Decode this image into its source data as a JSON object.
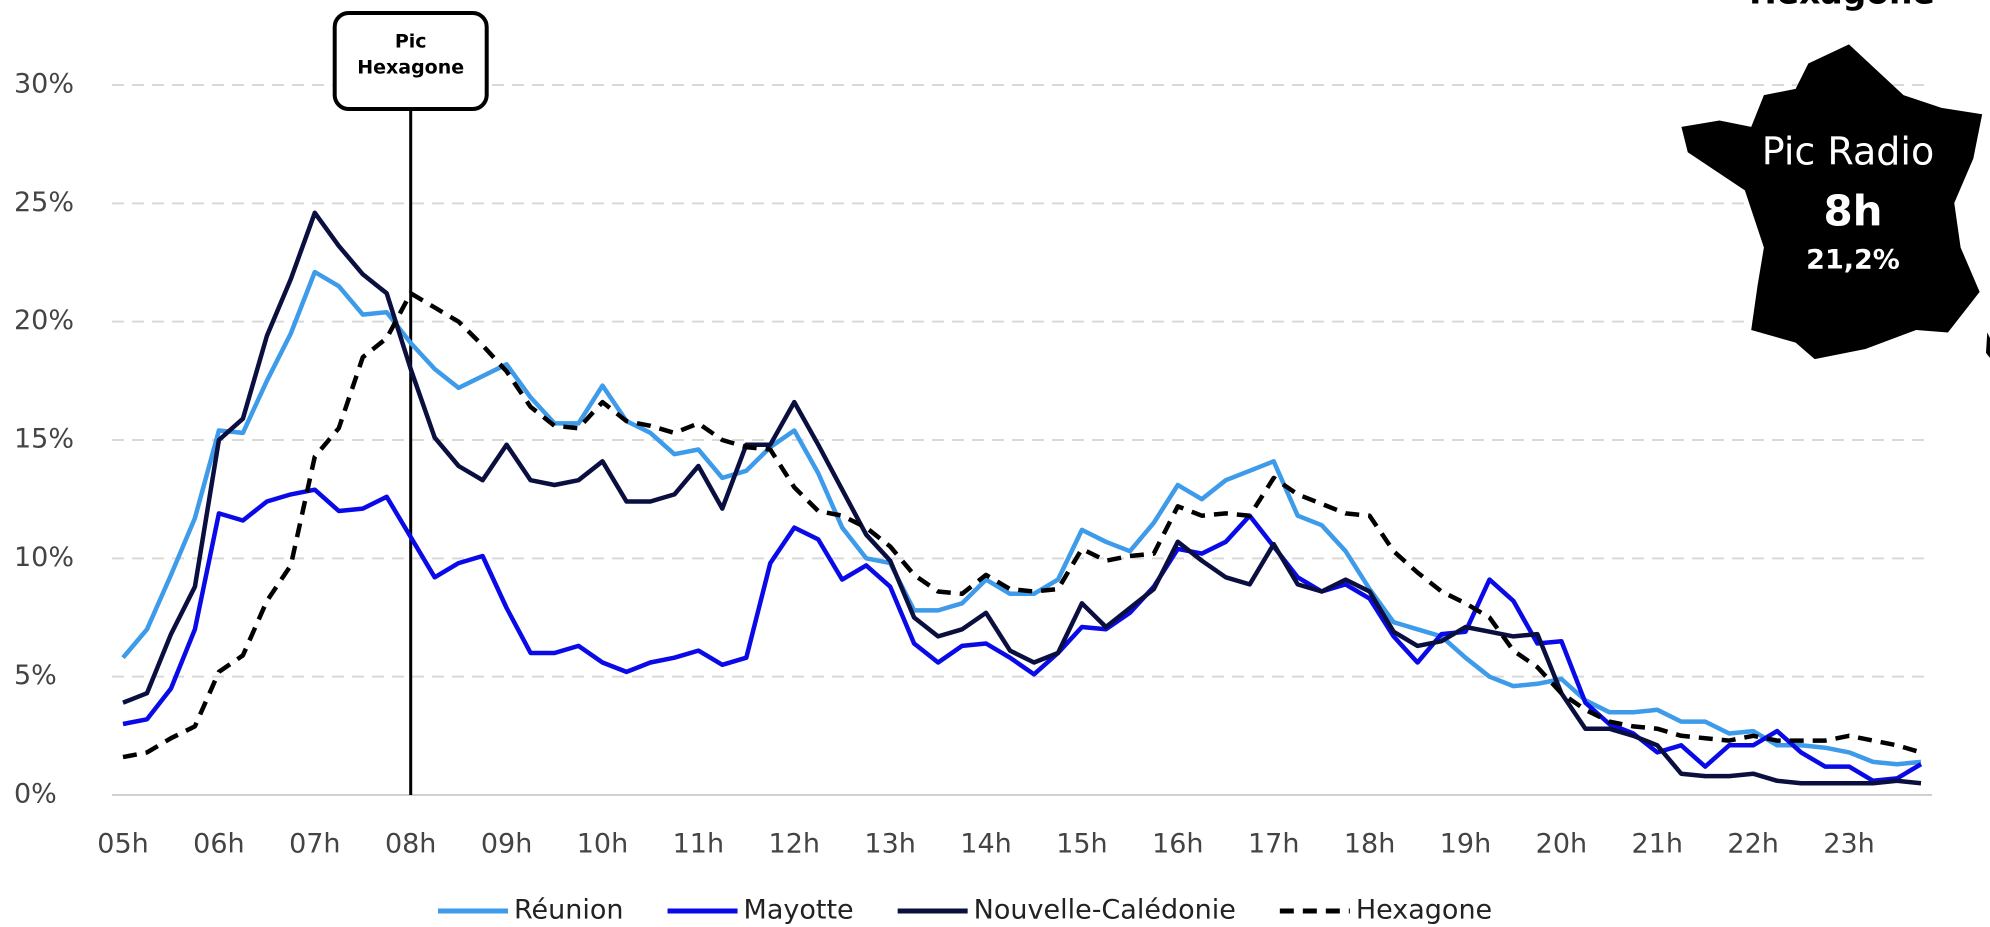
{
  "chart_data": {
    "type": "line",
    "x": [
      5,
      5.25,
      5.5,
      5.75,
      6,
      6.25,
      6.5,
      6.75,
      7,
      7.25,
      7.5,
      7.75,
      8,
      8.25,
      8.5,
      8.75,
      9,
      9.25,
      9.5,
      9.75,
      10,
      10.25,
      10.5,
      10.75,
      11,
      11.25,
      11.5,
      11.75,
      12,
      12.25,
      12.5,
      12.75,
      13,
      13.25,
      13.5,
      13.75,
      14,
      14.25,
      14.5,
      14.75,
      15,
      15.25,
      15.5,
      15.75,
      16,
      16.25,
      16.5,
      16.75,
      17,
      17.25,
      17.5,
      17.75,
      18,
      18.25,
      18.5,
      18.75,
      19,
      19.25,
      19.5,
      19.75,
      20,
      20.25,
      20.5,
      20.75,
      21,
      21.25,
      21.5,
      21.75,
      22,
      22.25,
      22.5,
      22.75,
      23,
      23.25,
      23.5,
      23.75
    ],
    "series": [
      {
        "name": "Réunion",
        "color": "#3d9be9",
        "dashed": false,
        "values": [
          5.8,
          7.0,
          9.3,
          11.7,
          15.4,
          15.3,
          17.5,
          19.5,
          22.1,
          21.5,
          20.3,
          20.4,
          19.1,
          18.0,
          17.2,
          17.7,
          18.2,
          16.8,
          15.7,
          15.7,
          17.3,
          15.8,
          15.3,
          14.4,
          14.6,
          13.4,
          13.7,
          14.7,
          15.4,
          13.6,
          11.3,
          10.0,
          9.8,
          7.8,
          7.8,
          8.1,
          9.1,
          8.5,
          8.5,
          9.1,
          11.2,
          10.7,
          10.3,
          11.5,
          13.1,
          12.5,
          13.3,
          13.7,
          14.1,
          11.8,
          11.4,
          10.3,
          8.7,
          7.3,
          7.0,
          6.7,
          5.8,
          5.0,
          4.6,
          4.7,
          4.9,
          4.0,
          3.5,
          3.5,
          3.6,
          3.1,
          3.1,
          2.6,
          2.7,
          2.1,
          2.1,
          2.0,
          1.8,
          1.4,
          1.3,
          1.4
        ]
      },
      {
        "name": "Mayotte",
        "color": "#0a0ae8",
        "dashed": false,
        "values": [
          3.0,
          3.2,
          4.5,
          7.0,
          11.9,
          11.6,
          12.4,
          12.7,
          12.9,
          12.0,
          12.1,
          12.6,
          10.9,
          9.2,
          9.8,
          10.1,
          7.9,
          6.0,
          6.0,
          6.3,
          5.6,
          5.2,
          5.6,
          5.8,
          6.1,
          5.5,
          5.8,
          9.8,
          11.3,
          10.8,
          9.1,
          9.7,
          8.8,
          6.4,
          5.6,
          6.3,
          6.4,
          5.8,
          5.1,
          6.0,
          7.1,
          7.0,
          7.7,
          8.8,
          10.4,
          10.2,
          10.7,
          11.8,
          10.5,
          9.2,
          8.6,
          8.9,
          8.3,
          6.7,
          5.6,
          6.8,
          6.9,
          9.1,
          8.2,
          6.4,
          6.5,
          3.9,
          3.0,
          2.6,
          1.8,
          2.1,
          1.2,
          2.1,
          2.1,
          2.7,
          1.8,
          1.2,
          1.2,
          0.6,
          0.7,
          1.3
        ]
      },
      {
        "name": "Nouvelle-Calédonie",
        "color": "#0b0f3f",
        "dashed": false,
        "values": [
          3.9,
          4.3,
          6.8,
          8.8,
          15.0,
          15.9,
          19.4,
          21.8,
          24.6,
          23.2,
          22.0,
          21.2,
          18.0,
          15.1,
          13.9,
          13.3,
          14.8,
          13.3,
          13.1,
          13.3,
          14.1,
          12.4,
          12.4,
          12.7,
          13.9,
          12.1,
          14.8,
          14.8,
          16.6,
          14.8,
          12.9,
          11.0,
          9.9,
          7.5,
          6.7,
          7.0,
          7.7,
          6.1,
          5.6,
          6.0,
          8.1,
          7.1,
          7.9,
          8.7,
          10.7,
          9.9,
          9.2,
          8.9,
          10.6,
          8.9,
          8.6,
          9.1,
          8.6,
          6.9,
          6.3,
          6.5,
          7.1,
          6.9,
          6.7,
          6.8,
          4.3,
          2.8,
          2.8,
          2.5,
          2.1,
          0.9,
          0.8,
          0.8,
          0.9,
          0.6,
          0.5,
          0.5,
          0.5,
          0.5,
          0.6,
          0.5
        ]
      },
      {
        "name": "Hexagone",
        "color": "#000000",
        "dashed": true,
        "values": [
          1.6,
          1.8,
          2.4,
          2.9,
          5.2,
          5.9,
          8.2,
          9.7,
          14.3,
          15.5,
          18.5,
          19.3,
          21.2,
          20.6,
          20.0,
          19.0,
          17.9,
          16.4,
          15.6,
          15.5,
          16.6,
          15.8,
          15.6,
          15.3,
          15.7,
          15.0,
          14.7,
          14.6,
          13.0,
          12.0,
          11.8,
          11.3,
          10.5,
          9.3,
          8.6,
          8.5,
          9.3,
          8.7,
          8.6,
          8.7,
          10.4,
          9.9,
          10.1,
          10.2,
          12.2,
          11.8,
          11.9,
          11.8,
          13.4,
          12.7,
          12.3,
          11.9,
          11.8,
          10.3,
          9.4,
          8.6,
          8.1,
          7.5,
          6.1,
          5.4,
          4.3,
          3.6,
          3.1,
          2.9,
          2.8,
          2.5,
          2.4,
          2.3,
          2.5,
          2.3,
          2.3,
          2.3,
          2.5,
          2.3,
          2.1,
          1.8
        ]
      }
    ],
    "xlim": [
      4.885,
      23.865
    ],
    "xticks": [
      {
        "value": 5,
        "label": "05h"
      },
      {
        "value": 6,
        "label": "06h"
      },
      {
        "value": 7,
        "label": "07h"
      },
      {
        "value": 8,
        "label": "08h"
      },
      {
        "value": 9,
        "label": "09h"
      },
      {
        "value": 10,
        "label": "10h"
      },
      {
        "value": 11,
        "label": "11h"
      },
      {
        "value": 12,
        "label": "12h"
      },
      {
        "value": 13,
        "label": "13h"
      },
      {
        "value": 14,
        "label": "14h"
      },
      {
        "value": 15,
        "label": "15h"
      },
      {
        "value": 16,
        "label": "16h"
      },
      {
        "value": 17,
        "label": "17h"
      },
      {
        "value": 18,
        "label": "18h"
      },
      {
        "value": 19,
        "label": "19h"
      },
      {
        "value": 20,
        "label": "20h"
      },
      {
        "value": 21,
        "label": "21h"
      },
      {
        "value": 22,
        "label": "22h"
      },
      {
        "value": 23,
        "label": "23h"
      }
    ],
    "ylim": [
      0,
      30
    ],
    "yticks": [
      {
        "value": 0,
        "label": "0%"
      },
      {
        "value": 5,
        "label": "5%"
      },
      {
        "value": 10,
        "label": "10%"
      },
      {
        "value": 15,
        "label": "15%"
      },
      {
        "value": 20,
        "label": "20%"
      },
      {
        "value": 25,
        "label": "25%"
      },
      {
        "value": 30,
        "label": "30%"
      }
    ],
    "grid": true,
    "legend": "bottom",
    "annotation": {
      "x": 8,
      "lines": [
        "Pic",
        "Hexagone"
      ]
    },
    "inset": {
      "title": "Hexagone",
      "label": "Pic Radio",
      "time": "8h",
      "value_label": "21,2%"
    }
  }
}
